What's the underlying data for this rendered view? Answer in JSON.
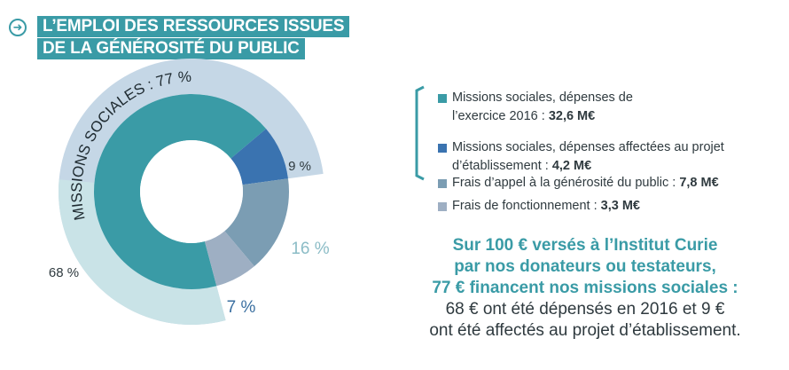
{
  "header": {
    "title_line1": "L’EMPLOI DES RESSOURCES ISSUES",
    "title_line2": "DE LA GÉNÉROSITÉ DU PUBLIC"
  },
  "chart_data": {
    "type": "pie",
    "title": "L’EMPLOI DES RESSOURCES ISSUES DE LA GÉNÉROSITÉ DU PUBLIC",
    "slices": [
      {
        "label": "68 %",
        "value": 68,
        "color": "#3a9ba6"
      },
      {
        "label": "9 %",
        "value": 9,
        "color": "#3a73b0"
      },
      {
        "label": "16 %",
        "value": 16,
        "color": "#7b9db3"
      },
      {
        "label": "7 %",
        "value": 7,
        "color": "#9eafc3"
      }
    ],
    "group_label": "MISSIONS SOCIALES : 77 %",
    "group_value": 77,
    "outer_ring_colors": {
      "missions": "#c5d7e6",
      "other": "#c9e3e7"
    },
    "legend_placement": "right"
  },
  "legend": [
    {
      "color": "#3a9ba6",
      "text": "Missions sociales, dépenses de",
      "text2": "l’exercice 2016 : ",
      "value": "32,6 M€"
    },
    {
      "color": "#3a73b0",
      "text": "Missions sociales, dépenses affectées au projet",
      "text2": "d’établissement : ",
      "value": "4,2 M€"
    },
    {
      "color": "#7b9db3",
      "text": "Frais d’appel à la générosité du public : ",
      "text2": "",
      "value": "7,8 M€"
    },
    {
      "color": "#9eafc3",
      "text": "Frais de fonctionnement : ",
      "text2": "",
      "value": "3,3 M€"
    }
  ],
  "summary": {
    "line1": "Sur 100 € versés à l’Institut Curie",
    "line2": "par nos donateurs ou testateurs,",
    "line3": "77 € financent nos missions sociales :",
    "line4": "68 € ont été dépensés en 2016 et 9 €",
    "line5": "ont été affectés au projet d’établissement."
  },
  "colors": {
    "accent": "#3a9ba6",
    "text": "#2f3a3f"
  }
}
